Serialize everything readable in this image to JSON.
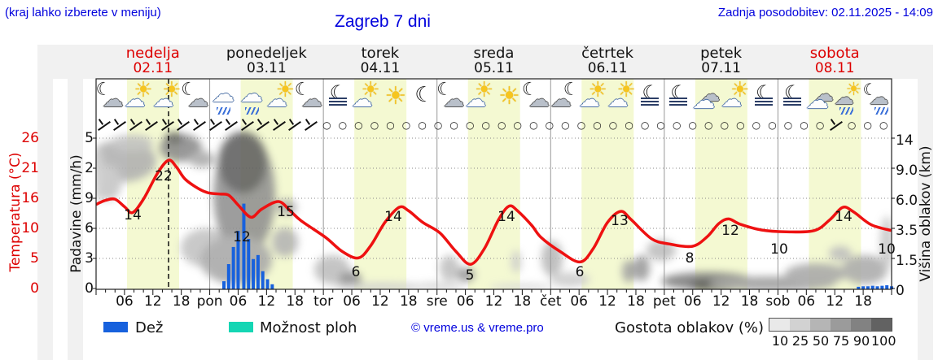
{
  "header": {
    "menu_hint": "(kraj lahko izberete v meniju)",
    "title": "Zagreb 7 dni",
    "last_update": "Zadnja posodobitev: 02.11.2025 - 14:09"
  },
  "days": [
    {
      "name": "nedelja",
      "date": "02.11",
      "accent": true
    },
    {
      "name": "ponedeljek",
      "date": "03.11",
      "accent": false
    },
    {
      "name": "torek",
      "date": "04.11",
      "accent": false
    },
    {
      "name": "sreda",
      "date": "05.11",
      "accent": false
    },
    {
      "name": "četrtek",
      "date": "06.11",
      "accent": false
    },
    {
      "name": "petek",
      "date": "07.11",
      "accent": false
    },
    {
      "name": "sobota",
      "date": "08.11",
      "accent": true
    }
  ],
  "axes": {
    "temp": {
      "label": "Temperatura (°C)",
      "ticks": [
        "26",
        "21",
        "16",
        "10",
        "5",
        "0"
      ]
    },
    "precip": {
      "label": "Padavine (mm/h)",
      "ticks": [
        "5",
        "2",
        "9",
        "6",
        "3",
        "0"
      ]
    },
    "height": {
      "label": "Višina oblakov (km)",
      "ticks": [
        "14",
        "9.0",
        "6.0",
        "3.5",
        "1.5",
        "0"
      ]
    }
  },
  "xlabels": [
    "06",
    "12",
    "18",
    "pon",
    "06",
    "12",
    "18",
    "tor",
    "06",
    "12",
    "18",
    "sre",
    "06",
    "12",
    "18",
    "čet",
    "06",
    "12",
    "18",
    "pet",
    "06",
    "12",
    "18",
    "sob",
    "06",
    "12",
    "18"
  ],
  "icons": [
    "moon-cloud",
    "sun-cloud",
    "sun-cloud",
    "moon-cloud",
    "rain-cloud",
    "rain-cloud",
    "sun-cloud",
    "moon-cloud",
    "moon-fog",
    "sun-cloud",
    "sun",
    "moon",
    "moon-cloud",
    "sun-cloud",
    "sun",
    "moon-cloud",
    "cloud-moon",
    "sun-cloud",
    "sun-cloud",
    "moon-fog",
    "moon-fog",
    "cloud",
    "sun-cloud",
    "moon-fog",
    "moon-fog",
    "cloud",
    "sun-drizzle",
    "moon-drizzle"
  ],
  "glyphs": {
    "sun": "☀",
    "cloud": "☁",
    "moon": "☾",
    "calm": "○"
  },
  "wind": [
    "b",
    "b",
    "b",
    "b",
    "b",
    "b",
    "b",
    "b",
    "b",
    "b",
    "b",
    "b",
    "b",
    "b",
    "o",
    "o",
    "o",
    "o",
    "o",
    "o",
    "o",
    "o",
    "o",
    "o",
    "o",
    "o",
    "o",
    "o",
    "o",
    "o",
    "o",
    "o",
    "o",
    "o",
    "o",
    "o",
    "o",
    "o",
    "o",
    "o",
    "o",
    "o",
    "o",
    "o",
    "o",
    "o",
    "b",
    "o",
    "o",
    "o"
  ],
  "chart_data": {
    "type": "line",
    "title": "Zagreb 7 dni meteogram",
    "x_unit": "hours_from_2025-11-02T00:00",
    "x_range": [
      0,
      168
    ],
    "temp_axis_range_c": [
      0,
      26
    ],
    "precip_axis_range_mm_h": [
      0,
      15
    ],
    "cloud_height_axis_range_km": [
      0,
      14
    ],
    "now_hour": 15.3,
    "series": [
      {
        "name": "Temperatura (°C)",
        "color": "#ee1111",
        "points": [
          [
            0,
            14.6
          ],
          [
            2,
            15.3
          ],
          [
            4,
            15.5
          ],
          [
            6,
            14.2
          ],
          [
            7.7,
            13.2
          ],
          [
            10,
            15.5
          ],
          [
            13,
            20.0
          ],
          [
            15.3,
            22.2
          ],
          [
            17,
            21.0
          ],
          [
            19,
            18.8
          ],
          [
            22.9,
            16.8
          ],
          [
            26,
            16.4
          ],
          [
            28,
            16.2
          ],
          [
            30,
            14.5
          ],
          [
            32.7,
            12.4
          ],
          [
            35,
            13.8
          ],
          [
            38.5,
            15.1
          ],
          [
            41,
            13.5
          ],
          [
            43.3,
            11.8
          ],
          [
            48.5,
            8.9
          ],
          [
            52,
            6.5
          ],
          [
            55.4,
            5.4
          ],
          [
            58,
            7.5
          ],
          [
            61,
            11.5
          ],
          [
            64,
            14.1
          ],
          [
            66,
            13.5
          ],
          [
            69,
            11.5
          ],
          [
            72.6,
            9.7
          ],
          [
            76,
            6.5
          ],
          [
            79.1,
            4.3
          ],
          [
            82,
            7.0
          ],
          [
            85,
            12.0
          ],
          [
            87.2,
            14.3
          ],
          [
            89,
            13.5
          ],
          [
            92,
            11.0
          ],
          [
            94,
            8.9
          ],
          [
            98,
            6.5
          ],
          [
            102.2,
            4.7
          ],
          [
            105,
            7.0
          ],
          [
            108,
            11.5
          ],
          [
            110.8,
            13.4
          ],
          [
            113,
            12.0
          ],
          [
            117.3,
            8.7
          ],
          [
            121,
            7.8
          ],
          [
            125.9,
            7.4
          ],
          [
            129,
            9.0
          ],
          [
            131.5,
            11.3
          ],
          [
            133.6,
            12.1
          ],
          [
            136,
            11.2
          ],
          [
            140.5,
            10.2
          ],
          [
            145.7,
            9.9
          ],
          [
            151.7,
            10.1
          ],
          [
            155,
            12.0
          ],
          [
            157.7,
            14.1
          ],
          [
            160,
            13.3
          ],
          [
            163.7,
            11.1
          ],
          [
            168,
            10.1
          ]
        ]
      }
    ],
    "temp_point_labels": [
      {
        "t": "14",
        "x": 163,
        "y": 270
      },
      {
        "t": "22",
        "x": 201,
        "y": 222
      },
      {
        "t": "12",
        "x": 297,
        "y": 297
      },
      {
        "t": "15",
        "x": 351,
        "y": 266
      },
      {
        "t": "6",
        "x": 437,
        "y": 340
      },
      {
        "t": "14",
        "x": 483,
        "y": 272
      },
      {
        "t": "5",
        "x": 577,
        "y": 344
      },
      {
        "t": "14",
        "x": 622,
        "y": 272
      },
      {
        "t": "6",
        "x": 712,
        "y": 340
      },
      {
        "t": "13",
        "x": 761,
        "y": 277
      },
      {
        "t": "8",
        "x": 847,
        "y": 323
      },
      {
        "t": "12",
        "x": 897,
        "y": 289
      },
      {
        "t": "10",
        "x": 957,
        "y": 312
      },
      {
        "t": "14",
        "x": 1036,
        "y": 272
      },
      {
        "t": "10",
        "x": 1089,
        "y": 312
      }
    ],
    "precip_bars_mm_h": [
      [
        27,
        0.8
      ],
      [
        28,
        2.5
      ],
      [
        29,
        4.2
      ],
      [
        30,
        5.8
      ],
      [
        31.2,
        8.5
      ],
      [
        32.2,
        5.0
      ],
      [
        33.2,
        3.0
      ],
      [
        34.2,
        3.4
      ],
      [
        35.2,
        1.8
      ],
      [
        36.2,
        1.0
      ],
      [
        37.2,
        0.5
      ],
      [
        161,
        0.25
      ],
      [
        162,
        0.3
      ],
      [
        163,
        0.3
      ],
      [
        164,
        0.35
      ],
      [
        165,
        0.3
      ],
      [
        166,
        0.35
      ],
      [
        167,
        0.4
      ],
      [
        168,
        0.3
      ]
    ],
    "clouds": [
      {
        "x": 150,
        "y": 198,
        "rx": 42,
        "ry": 26,
        "c": "#b0b0b0"
      },
      {
        "x": 133,
        "y": 225,
        "rx": 16,
        "ry": 22,
        "c": "#c4c4c4"
      },
      {
        "x": 162,
        "y": 176,
        "rx": 26,
        "ry": 10,
        "c": "#c0c0c0"
      },
      {
        "x": 222,
        "y": 182,
        "rx": 26,
        "ry": 17,
        "c": "#8a8a8a"
      },
      {
        "x": 214,
        "y": 170,
        "rx": 12,
        "ry": 7,
        "c": "#606060"
      },
      {
        "x": 248,
        "y": 196,
        "rx": 16,
        "ry": 10,
        "c": "#aaaaaa"
      },
      {
        "x": 254,
        "y": 305,
        "rx": 32,
        "ry": 24,
        "c": "#c2c2c2"
      },
      {
        "x": 300,
        "y": 240,
        "rx": 38,
        "ry": 75,
        "c": "#909090"
      },
      {
        "x": 298,
        "y": 200,
        "rx": 30,
        "ry": 38,
        "c": "#5e5e5e"
      },
      {
        "x": 290,
        "y": 320,
        "rx": 44,
        "ry": 30,
        "c": "#a8a8a8"
      },
      {
        "x": 350,
        "y": 298,
        "rx": 16,
        "ry": 18,
        "c": "#b4b4b4"
      },
      {
        "x": 352,
        "y": 255,
        "rx": 12,
        "ry": 10,
        "c": "#aaaaaa"
      },
      {
        "x": 408,
        "y": 332,
        "rx": 22,
        "ry": 18,
        "c": "#bdbdbd"
      },
      {
        "x": 430,
        "y": 344,
        "rx": 14,
        "ry": 10,
        "c": "#8c8c8c"
      },
      {
        "x": 470,
        "y": 353,
        "rx": 60,
        "ry": 5,
        "c": "#cfcfcf"
      },
      {
        "x": 540,
        "y": 352,
        "rx": 30,
        "ry": 5,
        "c": "#d6d6d6"
      },
      {
        "x": 552,
        "y": 330,
        "rx": 12,
        "ry": 16,
        "c": "#c0c0c0"
      },
      {
        "x": 572,
        "y": 338,
        "rx": 11,
        "ry": 9,
        "c": "#969696"
      },
      {
        "x": 634,
        "y": 322,
        "rx": 6,
        "ry": 14,
        "c": "#cccccc"
      },
      {
        "x": 640,
        "y": 353,
        "rx": 40,
        "ry": 4,
        "c": "#d8d8d8"
      },
      {
        "x": 678,
        "y": 318,
        "rx": 13,
        "ry": 22,
        "c": "#b8b8b8"
      },
      {
        "x": 700,
        "y": 344,
        "rx": 24,
        "ry": 9,
        "c": "#cccccc"
      },
      {
        "x": 772,
        "y": 334,
        "rx": 8,
        "ry": 14,
        "c": "#a2a2a2"
      },
      {
        "x": 788,
        "y": 330,
        "rx": 10,
        "ry": 16,
        "c": "#9a9a9a"
      },
      {
        "x": 812,
        "y": 308,
        "rx": 18,
        "ry": 13,
        "c": "#bdbdbd"
      },
      {
        "x": 870,
        "y": 346,
        "rx": 58,
        "ry": 11,
        "c": "#7d7d7d"
      },
      {
        "x": 882,
        "y": 351,
        "rx": 36,
        "ry": 7,
        "c": "#4a4a4a"
      },
      {
        "x": 948,
        "y": 349,
        "rx": 78,
        "ry": 9,
        "c": "#9e9e9e"
      },
      {
        "x": 1002,
        "y": 337,
        "rx": 38,
        "ry": 13,
        "c": "#a8a8a8"
      },
      {
        "x": 1032,
        "y": 312,
        "rx": 14,
        "ry": 9,
        "c": "#bdbdbd"
      },
      {
        "x": 1062,
        "y": 332,
        "rx": 28,
        "ry": 18,
        "c": "#ababab"
      },
      {
        "x": 1089,
        "y": 300,
        "rx": 8,
        "ry": 34,
        "c": "#c6c6c6"
      },
      {
        "x": 120,
        "y": 215,
        "rx": 7,
        "ry": 34,
        "c": "#cccccc"
      }
    ]
  },
  "legend": {
    "rain_label": "Dež",
    "rain_color": "#1761dd",
    "showers_label": "Možnost ploh",
    "showers_color": "#14d6b4",
    "copyright": "© vreme.us & vreme.pro",
    "cloud_density_label": "Gostota oblakov (%)",
    "density_ticks": [
      "10",
      "25",
      "50",
      "75",
      "90",
      "100"
    ],
    "density_colors": [
      "#e9e9e9",
      "#d2d2d2",
      "#b5b5b5",
      "#9b9b9b",
      "#828282",
      "#626262"
    ]
  },
  "colors": {
    "accent_blue": "#0202dd",
    "accent_red": "#dd0000",
    "curve_red": "#ee1111",
    "daylight_band": "#f4f9d2",
    "panel_gray": "#f1f1f1"
  }
}
